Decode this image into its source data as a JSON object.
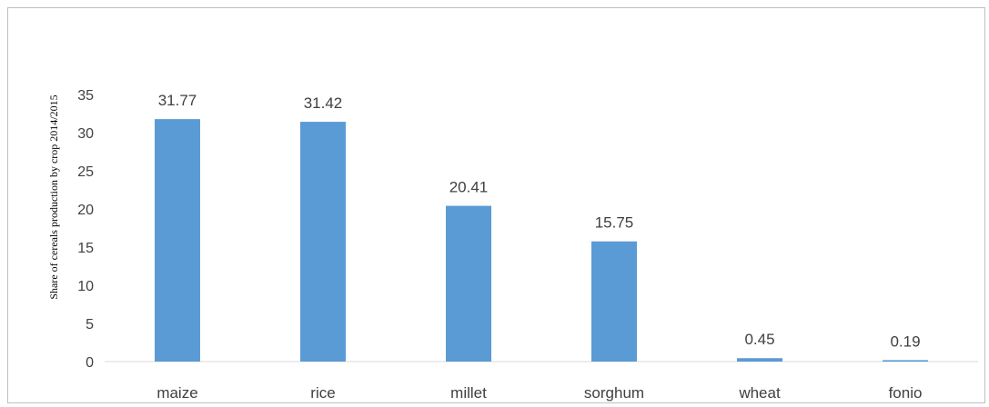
{
  "chart_data": {
    "type": "bar",
    "title": "",
    "xlabel": "",
    "ylabel": "Share of cereals production by crop 2014/2015",
    "categories": [
      "maize",
      "rice",
      "millet",
      "sorghum",
      "wheat",
      "fonio"
    ],
    "values": [
      31.77,
      31.42,
      20.41,
      15.75,
      0.45,
      0.19
    ],
    "data_labels": [
      "31.77",
      "31.42",
      "20.41",
      "15.75",
      "0.45",
      "0.19"
    ],
    "ylim": [
      0,
      35
    ],
    "yticks": [
      0,
      5,
      10,
      15,
      20,
      25,
      30,
      35
    ],
    "grid": false,
    "legend": "none",
    "bar_color": "#5b9bd5"
  }
}
